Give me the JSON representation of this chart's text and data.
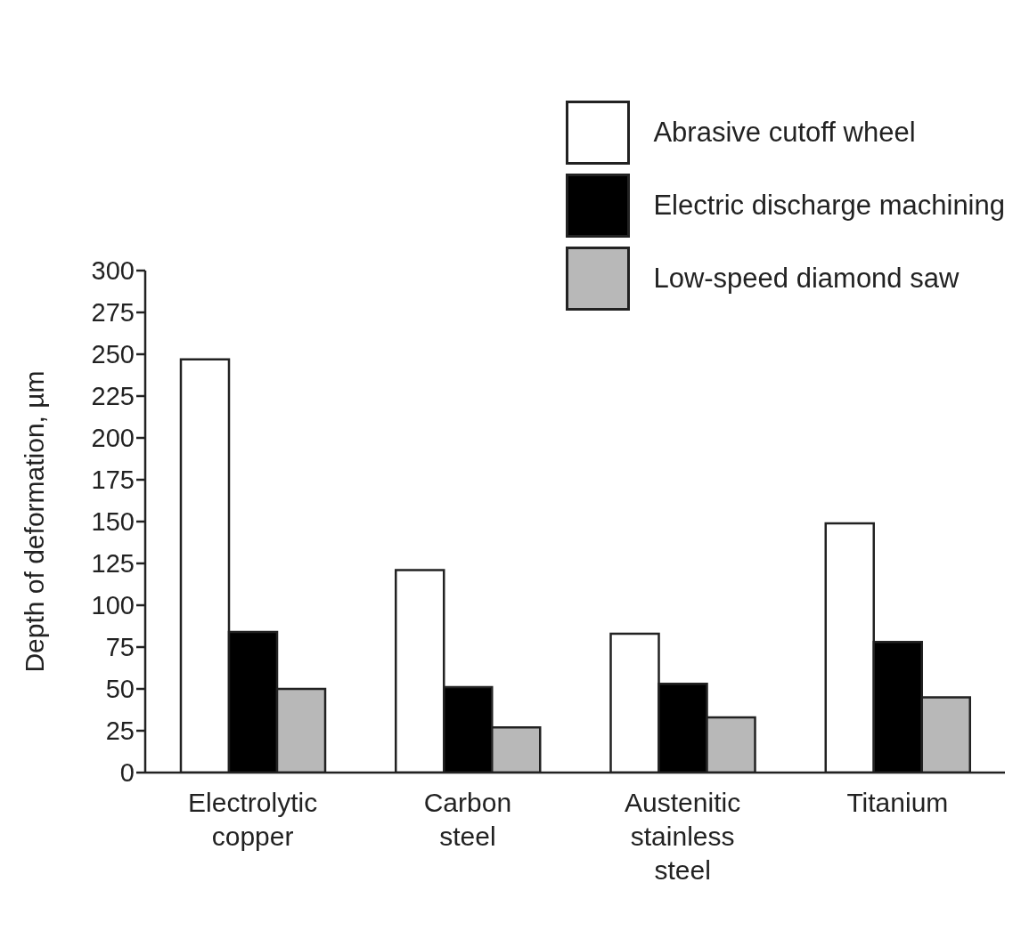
{
  "chart_data": {
    "type": "bar",
    "ylabel": "Depth of deformation, µm",
    "categories": [
      "Electrolytic\ncopper",
      "Carbon\nsteel",
      "Austenitic\nstainless\nsteel",
      "Titanium"
    ],
    "series": [
      {
        "name": "Abrasive cutoff wheel",
        "color": "#ffffff",
        "values": [
          247,
          121,
          83,
          149
        ]
      },
      {
        "name": "Electric discharge machining",
        "color": "#000000",
        "values": [
          84,
          51,
          53,
          78
        ]
      },
      {
        "name": "Low-speed diamond saw",
        "color": "#b8b8b8",
        "values": [
          50,
          27,
          33,
          45
        ]
      }
    ],
    "ylim": [
      0,
      300
    ],
    "yticks": [
      0,
      25,
      50,
      75,
      100,
      125,
      150,
      175,
      200,
      225,
      250,
      275,
      300
    ],
    "grid": false,
    "legend": "top right"
  }
}
